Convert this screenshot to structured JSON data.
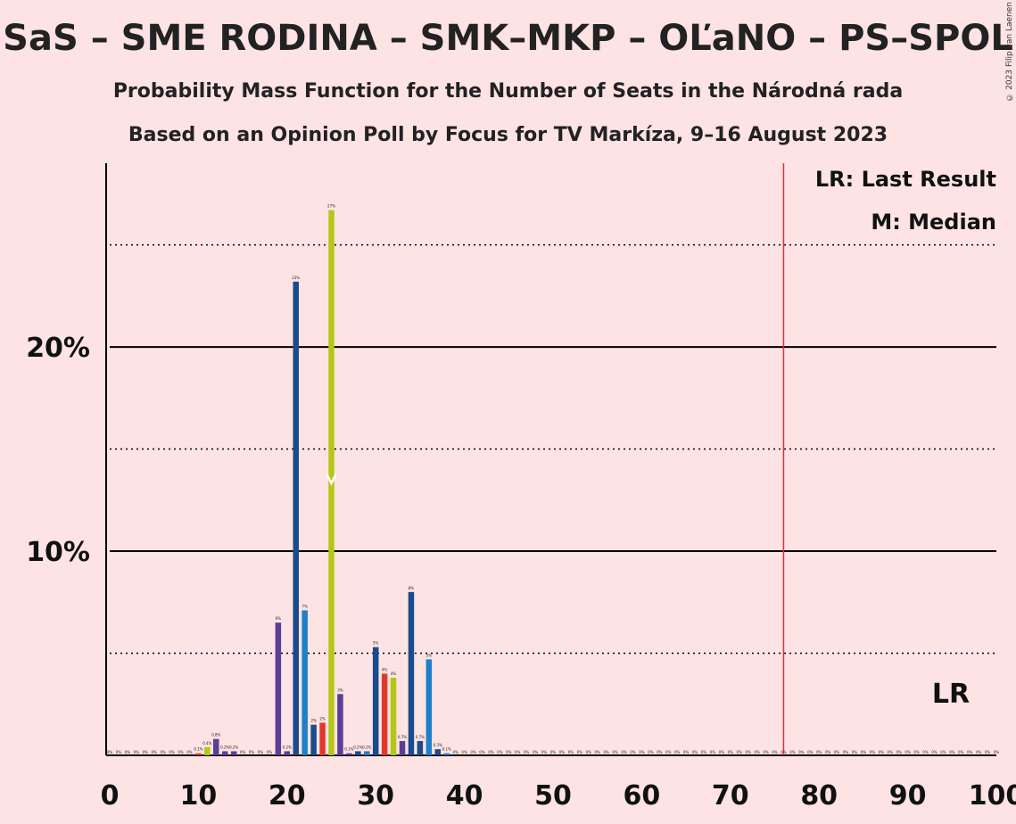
{
  "chart_data": {
    "type": "bar",
    "title": "SaS – SME RODINA – SMK–MKP – OĽaNO – PS–SPOL",
    "subtitle": "Probability Mass Function for the Number of Seats in the Národná rada",
    "subtitle2": "Based on an Opinion Poll by Focus for TV Markíza, 9–16 August 2023",
    "copyright": "© 2023 Filip van Laenen",
    "xlim": [
      0,
      100
    ],
    "ylim": [
      0,
      29
    ],
    "x_ticks": [
      "0",
      "10",
      "20",
      "30",
      "40",
      "50",
      "60",
      "70",
      "80",
      "90",
      "100"
    ],
    "y_ticks": [
      {
        "value": 10,
        "label": "10%"
      },
      {
        "value": 20,
        "label": "20%"
      }
    ],
    "majority_line": 76,
    "median": 25,
    "legend": {
      "lr": "LR: Last Result",
      "m": "M: Median"
    },
    "lr_label": "LR",
    "colors": {
      "sas": "#5a3e96",
      "smk": "#1a4b8c",
      "ps": "#1f7fc8",
      "red": "#e0392b",
      "lime": "#b5c716",
      "majority": "#e03030"
    },
    "bars": [
      {
        "x": 10,
        "value": 0.1,
        "label": "0.1%",
        "color": "red"
      },
      {
        "x": 11,
        "value": 0.4,
        "label": "0.4%",
        "color": "lime"
      },
      {
        "x": 12,
        "value": 0.8,
        "label": "0.8%",
        "color": "sas"
      },
      {
        "x": 13,
        "value": 0.2,
        "label": "0.2%",
        "color": "sas"
      },
      {
        "x": 14,
        "value": 0.2,
        "label": "0.2%",
        "color": "sas"
      },
      {
        "x": 19,
        "value": 6.5,
        "label": "6%",
        "color": "sas"
      },
      {
        "x": 20,
        "value": 0.2,
        "label": "0.2%",
        "color": "sas"
      },
      {
        "x": 21,
        "value": 23.2,
        "label": "23%",
        "color": "smk"
      },
      {
        "x": 22,
        "value": 7.1,
        "label": "7%",
        "color": "ps"
      },
      {
        "x": 23,
        "value": 1.5,
        "label": "2%",
        "color": "smk"
      },
      {
        "x": 24,
        "value": 1.6,
        "label": "2%",
        "color": "red"
      },
      {
        "x": 25,
        "value": 26.7,
        "label": "27%",
        "color": "lime"
      },
      {
        "x": 26,
        "value": 3.0,
        "label": "3%",
        "color": "sas"
      },
      {
        "x": 27,
        "value": 0.1,
        "label": "0.1%",
        "color": "sas"
      },
      {
        "x": 28,
        "value": 0.2,
        "label": "0.2%",
        "color": "smk"
      },
      {
        "x": 29,
        "value": 0.2,
        "label": "0.2%",
        "color": "ps"
      },
      {
        "x": 30,
        "value": 5.3,
        "label": "5%",
        "color": "smk"
      },
      {
        "x": 31,
        "value": 4.0,
        "label": "4%",
        "color": "red"
      },
      {
        "x": 32,
        "value": 3.8,
        "label": "4%",
        "color": "lime"
      },
      {
        "x": 33,
        "value": 0.7,
        "label": "0.7%",
        "color": "sas"
      },
      {
        "x": 34,
        "value": 8.0,
        "label": "8%",
        "color": "smk"
      },
      {
        "x": 35,
        "value": 0.7,
        "label": "0.7%",
        "color": "smk"
      },
      {
        "x": 36,
        "value": 4.7,
        "label": "5%",
        "color": "ps"
      },
      {
        "x": 37,
        "value": 0.3,
        "label": "0.3%",
        "color": "smk"
      },
      {
        "x": 38,
        "value": 0.1,
        "label": "0.1%",
        "color": "ps"
      }
    ],
    "zero_label": "0%"
  }
}
